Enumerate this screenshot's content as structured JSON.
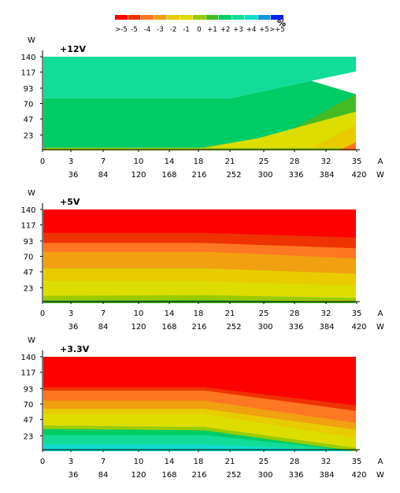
{
  "legend": {
    "labels": [
      ">-5",
      "-5",
      "-4",
      "-3",
      "-2",
      "-1",
      "0",
      "+1",
      "+2",
      "+3",
      "+4",
      "+5",
      ">+5"
    ],
    "colors": [
      "#ff0000",
      "#ee3300",
      "#ff7722",
      "#f0a010",
      "#e8cc00",
      "#dddd00",
      "#99cc00",
      "#44bb22",
      "#00cc66",
      "#11dd99",
      "#11ddcc",
      "#1199dd",
      "#0022ee"
    ],
    "unit": "%"
  },
  "axis_units": {
    "current": "A",
    "power": "W",
    "y_power": "W"
  },
  "chart_data": [
    {
      "type": "heatmap",
      "title": "+12V",
      "x_current_ticks": [
        "0",
        "3",
        "7",
        "10",
        "14",
        "18",
        "21",
        "25",
        "28",
        "32",
        "35"
      ],
      "x_power_ticks": [
        "36",
        "84",
        "120",
        "168",
        "216",
        "252",
        "300",
        "336",
        "384",
        "420"
      ],
      "y_ticks": [
        "140",
        "117",
        "93",
        "70",
        "47",
        "23"
      ],
      "xlim": [
        0,
        35
      ],
      "ylim": [
        0,
        140
      ],
      "regions": [
        {
          "legend": "0",
          "outline": [
            [
              0,
              0
            ],
            [
              35,
              0
            ],
            [
              35,
              4
            ],
            [
              0,
              4
            ]
          ]
        },
        {
          "legend": "+2",
          "outline": [
            [
              0,
              4
            ],
            [
              17.5,
              4
            ],
            [
              24,
              18
            ],
            [
              35,
              58
            ],
            [
              35,
              84
            ],
            [
              30,
              104
            ],
            [
              21,
              78
            ],
            [
              0,
              78
            ]
          ]
        },
        {
          "legend": "+3",
          "outline": [
            [
              0,
              78
            ],
            [
              21,
              78
            ],
            [
              30,
              104
            ],
            [
              35,
              118
            ],
            [
              35,
              140
            ],
            [
              0,
              140
            ]
          ]
        },
        {
          "legend": "+1",
          "outline": [
            [
              17.5,
              4
            ],
            [
              24,
              4
            ],
            [
              35,
              84
            ],
            [
              35,
              58
            ],
            [
              24,
              18
            ]
          ]
        },
        {
          "legend": "-1",
          "outline": [
            [
              24,
              4
            ],
            [
              35,
              4
            ],
            [
              35,
              58
            ],
            [
              24,
              18
            ],
            [
              18,
              4
            ]
          ]
        },
        {
          "legend": "-2",
          "outline": [
            [
              30,
              4
            ],
            [
              35,
              4
            ],
            [
              35,
              38
            ]
          ]
        },
        {
          "legend": "-4",
          "outline": [
            [
              33,
              0
            ],
            [
              35,
              0
            ],
            [
              35,
              12
            ]
          ]
        }
      ]
    },
    {
      "type": "heatmap",
      "title": "+5V",
      "x_current_ticks": [
        "0",
        "3",
        "7",
        "10",
        "14",
        "18",
        "21",
        "25",
        "28",
        "32",
        "35"
      ],
      "x_power_ticks": [
        "36",
        "84",
        "120",
        "168",
        "216",
        "252",
        "300",
        "336",
        "384",
        "420"
      ],
      "y_ticks": [
        "140",
        "117",
        "93",
        "70",
        "47",
        "23"
      ],
      "xlim": [
        0,
        35
      ],
      "ylim": [
        0,
        140
      ],
      "bands_at_x": [
        0,
        18,
        35
      ],
      "bands": [
        {
          "legend": "+1",
          "top": [
            4,
            5,
            2
          ]
        },
        {
          "legend": "0",
          "top": [
            11,
            12,
            8
          ]
        },
        {
          "legend": "-1",
          "top": [
            33,
            33,
            26
          ]
        },
        {
          "legend": "-2",
          "top": [
            52,
            52,
            44
          ]
        },
        {
          "legend": "-3",
          "top": [
            77,
            77,
            67
          ]
        },
        {
          "legend": "-4",
          "top": [
            90,
            90,
            82
          ]
        },
        {
          "legend": "-5",
          "top": [
            105,
            105,
            98
          ]
        },
        {
          "legend": ">-5",
          "top": [
            140,
            140,
            140
          ]
        }
      ]
    },
    {
      "type": "heatmap",
      "title": "+3.3V",
      "x_current_ticks": [
        "0",
        "3",
        "7",
        "10",
        "14",
        "18",
        "21",
        "25",
        "28",
        "32",
        "35"
      ],
      "x_power_ticks": [
        "36",
        "84",
        "120",
        "168",
        "216",
        "252",
        "300",
        "336",
        "384",
        "420"
      ],
      "y_ticks": [
        "140",
        "117",
        "93",
        "70",
        "47",
        "23"
      ],
      "xlim": [
        0,
        35
      ],
      "ylim": [
        0,
        140
      ],
      "bands_at_x": [
        0,
        18,
        35
      ],
      "bands": [
        {
          "legend": "+4",
          "top": [
            10,
            10,
            0
          ]
        },
        {
          "legend": "+3",
          "top": [
            24,
            24,
            0
          ]
        },
        {
          "legend": "+2",
          "top": [
            33,
            31,
            0
          ]
        },
        {
          "legend": "0",
          "top": [
            38,
            36,
            5
          ]
        },
        {
          "legend": "-1",
          "top": [
            55,
            55,
            20
          ]
        },
        {
          "legend": "-2",
          "top": [
            63,
            63,
            32
          ]
        },
        {
          "legend": "-3",
          "top": [
            75,
            75,
            42
          ]
        },
        {
          "legend": "-4",
          "top": [
            90,
            90,
            60
          ]
        },
        {
          "legend": "-5",
          "top": [
            95,
            95,
            68
          ]
        },
        {
          "legend": ">-5",
          "top": [
            140,
            140,
            140
          ]
        }
      ]
    }
  ]
}
